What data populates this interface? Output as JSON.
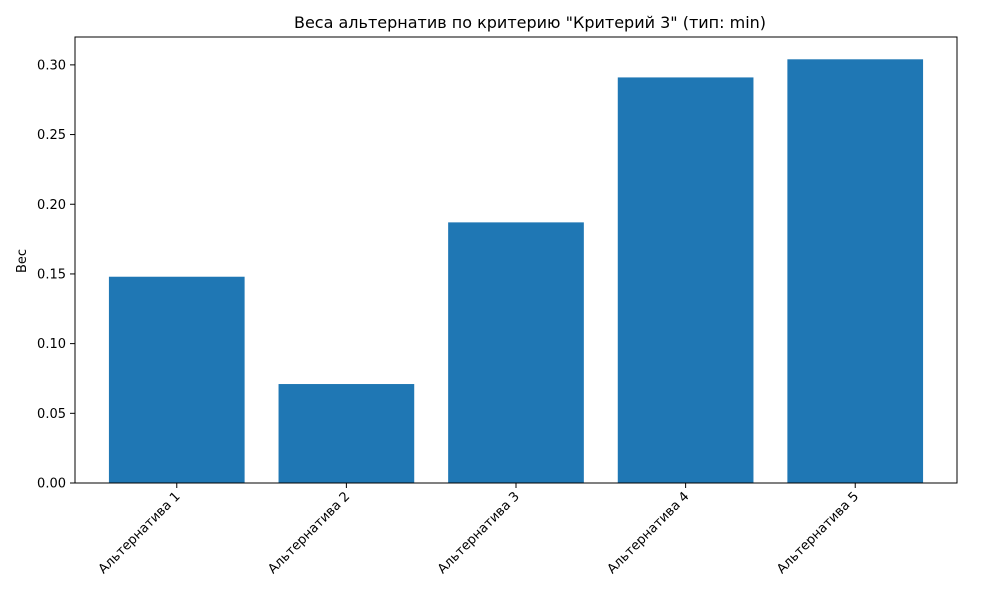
{
  "chart_data": {
    "type": "bar",
    "title": "Веса альтернатив по критерию \"Критерий 3\" (тип: min)",
    "xlabel": "",
    "ylabel": "Вес",
    "categories": [
      "Альтернатива 1",
      "Альтернатива 2",
      "Альтернатива 3",
      "Альтернатива 4",
      "Альтернатива 5"
    ],
    "values": [
      0.148,
      0.071,
      0.187,
      0.291,
      0.304
    ],
    "ylim": [
      0,
      0.32
    ],
    "yticks": [
      0.0,
      0.05,
      0.1,
      0.15,
      0.2,
      0.25,
      0.3
    ],
    "ytick_labels": [
      "0.00",
      "0.05",
      "0.10",
      "0.15",
      "0.20",
      "0.25",
      "0.30"
    ],
    "bar_color": "#1f77b4",
    "grid": false,
    "legend": "none"
  }
}
